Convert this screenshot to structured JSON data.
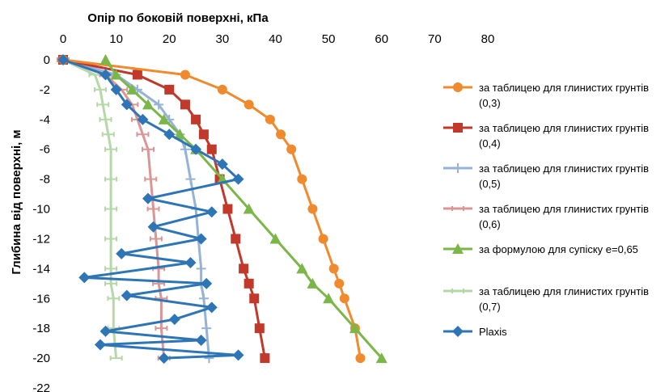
{
  "chart_data": {
    "type": "line",
    "title": "",
    "xlabel": "Опір по боковій поверхні, кПа",
    "ylabel": "Глибина від поверхні, м",
    "xlim": [
      0,
      80
    ],
    "ylim": [
      -22,
      0
    ],
    "x_ticks": [
      "0",
      "10",
      "20",
      "30",
      "40",
      "50",
      "60",
      "70",
      "80"
    ],
    "y_ticks": [
      "0",
      "-2",
      "-4",
      "-6",
      "-8",
      "-10",
      "-12",
      "-14",
      "-16",
      "-18",
      "-20",
      "-22"
    ],
    "x_axis_position": "top",
    "grid": false,
    "legend_position": "right",
    "series": [
      {
        "name": "за таблицею для глинистих грунтів (0,3)",
        "label_lines": [
          "за таблицею для глинистих грунтів",
          "(0,3)"
        ],
        "color": "#F08A2E",
        "marker": "circle",
        "points": [
          [
            0,
            0
          ],
          [
            23,
            -1
          ],
          [
            30,
            -2
          ],
          [
            35,
            -3
          ],
          [
            39,
            -4
          ],
          [
            41,
            -5
          ],
          [
            43,
            -6
          ],
          [
            45,
            -8
          ],
          [
            47,
            -10
          ],
          [
            49,
            -12
          ],
          [
            51,
            -14
          ],
          [
            52,
            -15
          ],
          [
            53,
            -16
          ],
          [
            55,
            -18
          ],
          [
            56,
            -20
          ]
        ]
      },
      {
        "name": "за таблицею для глинистих грунтів (0,4)",
        "label_lines": [
          "за таблицею для глинистих грунтів",
          "(0,4)"
        ],
        "color": "#C0392B",
        "marker": "square",
        "points": [
          [
            0,
            0
          ],
          [
            14,
            -1
          ],
          [
            20,
            -2
          ],
          [
            23,
            -3
          ],
          [
            25,
            -4
          ],
          [
            26.5,
            -5
          ],
          [
            28,
            -6
          ],
          [
            29.5,
            -8
          ],
          [
            31,
            -10
          ],
          [
            32.5,
            -12
          ],
          [
            34,
            -14
          ],
          [
            35,
            -15
          ],
          [
            36,
            -16
          ],
          [
            37,
            -18
          ],
          [
            38,
            -20
          ]
        ]
      },
      {
        "name": "за таблицею для глинистих грунтів (0,5)",
        "label_lines": [
          "за таблицею для глинистих грунтів",
          "(0,5)"
        ],
        "color": "#95B3D7",
        "marker": "cross",
        "points": [
          [
            0,
            0
          ],
          [
            10,
            -1
          ],
          [
            14,
            -2
          ],
          [
            18,
            -3
          ],
          [
            20,
            -4
          ],
          [
            22,
            -5
          ],
          [
            23,
            -6
          ],
          [
            24,
            -8
          ],
          [
            25,
            -10
          ],
          [
            25.5,
            -12
          ],
          [
            26,
            -14
          ],
          [
            26,
            -15
          ],
          [
            26.5,
            -16
          ],
          [
            27,
            -18
          ],
          [
            27.5,
            -20
          ]
        ]
      },
      {
        "name": "за таблицею для глинистих грунтів (0,6)",
        "label_lines": [
          "за таблицею для глинистих грунтів",
          "(0,6)"
        ],
        "color": "#D99694",
        "marker": "dash",
        "points": [
          [
            0,
            0
          ],
          [
            8,
            -1
          ],
          [
            11,
            -2
          ],
          [
            13,
            -3
          ],
          [
            14,
            -4
          ],
          [
            15,
            -5
          ],
          [
            16,
            -6
          ],
          [
            16.5,
            -8
          ],
          [
            17,
            -10
          ],
          [
            17.5,
            -12
          ],
          [
            18,
            -14
          ],
          [
            18,
            -15
          ],
          [
            18.5,
            -16
          ],
          [
            18.5,
            -18
          ],
          [
            19,
            -20
          ]
        ]
      },
      {
        "name": "за формулою для супіску е=0,65",
        "label_lines": [
          "за формулою для супіску е=0,65"
        ],
        "color": "#7AB648",
        "marker": "triangle",
        "points": [
          [
            8,
            0
          ],
          [
            10,
            -1
          ],
          [
            13,
            -2
          ],
          [
            16,
            -3
          ],
          [
            19,
            -4
          ],
          [
            22,
            -5
          ],
          [
            25,
            -6
          ],
          [
            30,
            -8
          ],
          [
            35,
            -10
          ],
          [
            40,
            -12
          ],
          [
            45,
            -14
          ],
          [
            47,
            -15
          ],
          [
            50,
            -16
          ],
          [
            55,
            -18
          ],
          [
            60,
            -20
          ]
        ]
      },
      {
        "name": "за таблицею для глинистих грунтів (0,7)",
        "label_lines": [
          "за таблицею для глинистих грунтів",
          "(0,7)"
        ],
        "color": "#B6D7A8",
        "marker": "dash",
        "points": [
          [
            0,
            0
          ],
          [
            6,
            -1
          ],
          [
            7,
            -2
          ],
          [
            7.5,
            -3
          ],
          [
            8,
            -4
          ],
          [
            8.5,
            -5
          ],
          [
            9,
            -6
          ],
          [
            9,
            -8
          ],
          [
            9,
            -10
          ],
          [
            9,
            -12
          ],
          [
            9,
            -14
          ],
          [
            9,
            -15
          ],
          [
            9.5,
            -16
          ],
          [
            9.5,
            -18
          ],
          [
            10,
            -20
          ]
        ]
      },
      {
        "name": "Plaxis",
        "label_lines": [
          "Plaxis"
        ],
        "color": "#2E75B6",
        "marker": "diamond",
        "points": [
          [
            0,
            0
          ],
          [
            8,
            -1
          ],
          [
            10,
            -2
          ],
          [
            12,
            -3
          ],
          [
            15,
            -4
          ],
          [
            20,
            -5
          ],
          [
            25,
            -6
          ],
          [
            30,
            -7
          ],
          [
            33,
            -8
          ],
          [
            16,
            -9.3
          ],
          [
            28,
            -10.2
          ],
          [
            17,
            -11.2
          ],
          [
            26,
            -12
          ],
          [
            11,
            -13
          ],
          [
            24,
            -13.6
          ],
          [
            4,
            -14.6
          ],
          [
            27,
            -15
          ],
          [
            12,
            -15.8
          ],
          [
            28,
            -16.6
          ],
          [
            21,
            -17.4
          ],
          [
            8,
            -18.2
          ],
          [
            26,
            -18.8
          ],
          [
            7,
            -19.1
          ],
          [
            33,
            -19.8
          ],
          [
            19,
            -20
          ]
        ]
      }
    ]
  }
}
